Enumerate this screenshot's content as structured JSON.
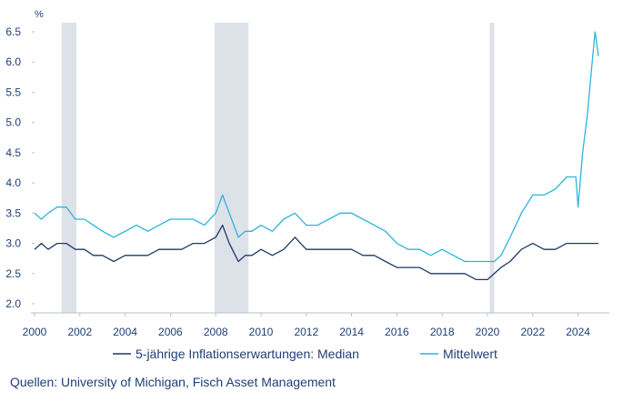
{
  "chart_data": {
    "type": "line",
    "unit_label": "%",
    "x_range": [
      2000.0,
      2024.9
    ],
    "ylim": [
      2.0,
      6.5
    ],
    "y_ticks": [
      2.0,
      2.5,
      3.0,
      3.5,
      4.0,
      4.5,
      5.0,
      5.5,
      6.0,
      6.5
    ],
    "y_tick_labels": [
      "2.0",
      "2.5",
      "3.0",
      "3.5",
      "4.0",
      "4.5",
      "5.0",
      "5.5",
      "6.0",
      "6.5"
    ],
    "x_ticks": [
      2000,
      2002,
      2004,
      2006,
      2008,
      2010,
      2012,
      2014,
      2016,
      2018,
      2020,
      2022,
      2024
    ],
    "x_tick_labels": [
      "2000",
      "2002",
      "2004",
      "2006",
      "2008",
      "2010",
      "2012",
      "2014",
      "2016",
      "2018",
      "2020",
      "2022",
      "2024"
    ],
    "recessions": [
      [
        2001.2,
        2001.85
      ],
      [
        2007.95,
        2009.45
      ],
      [
        2020.1,
        2020.3
      ]
    ],
    "series": [
      {
        "name": "5-jährige Inflationserwartungen: Median",
        "color": "#1b3a6b",
        "points": [
          [
            2000.0,
            2.9
          ],
          [
            2000.3,
            3.0
          ],
          [
            2000.6,
            2.9
          ],
          [
            2001.0,
            3.0
          ],
          [
            2001.4,
            3.0
          ],
          [
            2001.8,
            2.9
          ],
          [
            2002.2,
            2.9
          ],
          [
            2002.6,
            2.8
          ],
          [
            2003.0,
            2.8
          ],
          [
            2003.5,
            2.7
          ],
          [
            2004.0,
            2.8
          ],
          [
            2004.5,
            2.8
          ],
          [
            2005.0,
            2.8
          ],
          [
            2005.5,
            2.9
          ],
          [
            2006.0,
            2.9
          ],
          [
            2006.5,
            2.9
          ],
          [
            2007.0,
            3.0
          ],
          [
            2007.5,
            3.0
          ],
          [
            2008.0,
            3.1
          ],
          [
            2008.3,
            3.3
          ],
          [
            2008.6,
            3.0
          ],
          [
            2009.0,
            2.7
          ],
          [
            2009.3,
            2.8
          ],
          [
            2009.6,
            2.8
          ],
          [
            2010.0,
            2.9
          ],
          [
            2010.5,
            2.8
          ],
          [
            2011.0,
            2.9
          ],
          [
            2011.5,
            3.1
          ],
          [
            2012.0,
            2.9
          ],
          [
            2012.5,
            2.9
          ],
          [
            2013.0,
            2.9
          ],
          [
            2013.5,
            2.9
          ],
          [
            2014.0,
            2.9
          ],
          [
            2014.5,
            2.8
          ],
          [
            2015.0,
            2.8
          ],
          [
            2015.5,
            2.7
          ],
          [
            2016.0,
            2.6
          ],
          [
            2016.5,
            2.6
          ],
          [
            2017.0,
            2.6
          ],
          [
            2017.5,
            2.5
          ],
          [
            2018.0,
            2.5
          ],
          [
            2018.5,
            2.5
          ],
          [
            2019.0,
            2.5
          ],
          [
            2019.5,
            2.4
          ],
          [
            2020.0,
            2.4
          ],
          [
            2020.3,
            2.5
          ],
          [
            2020.6,
            2.6
          ],
          [
            2021.0,
            2.7
          ],
          [
            2021.5,
            2.9
          ],
          [
            2022.0,
            3.0
          ],
          [
            2022.5,
            2.9
          ],
          [
            2023.0,
            2.9
          ],
          [
            2023.5,
            3.0
          ],
          [
            2024.0,
            3.0
          ],
          [
            2024.5,
            3.0
          ],
          [
            2024.9,
            3.0
          ]
        ]
      },
      {
        "name": "Mittelwert",
        "color": "#2bb5de",
        "points": [
          [
            2000.0,
            3.5
          ],
          [
            2000.3,
            3.4
          ],
          [
            2000.6,
            3.5
          ],
          [
            2001.0,
            3.6
          ],
          [
            2001.4,
            3.6
          ],
          [
            2001.8,
            3.4
          ],
          [
            2002.2,
            3.4
          ],
          [
            2002.6,
            3.3
          ],
          [
            2003.0,
            3.2
          ],
          [
            2003.5,
            3.1
          ],
          [
            2004.0,
            3.2
          ],
          [
            2004.5,
            3.3
          ],
          [
            2005.0,
            3.2
          ],
          [
            2005.5,
            3.3
          ],
          [
            2006.0,
            3.4
          ],
          [
            2006.5,
            3.4
          ],
          [
            2007.0,
            3.4
          ],
          [
            2007.5,
            3.3
          ],
          [
            2008.0,
            3.5
          ],
          [
            2008.3,
            3.8
          ],
          [
            2008.6,
            3.5
          ],
          [
            2009.0,
            3.1
          ],
          [
            2009.3,
            3.2
          ],
          [
            2009.6,
            3.2
          ],
          [
            2010.0,
            3.3
          ],
          [
            2010.5,
            3.2
          ],
          [
            2011.0,
            3.4
          ],
          [
            2011.5,
            3.5
          ],
          [
            2012.0,
            3.3
          ],
          [
            2012.5,
            3.3
          ],
          [
            2013.0,
            3.4
          ],
          [
            2013.5,
            3.5
          ],
          [
            2014.0,
            3.5
          ],
          [
            2014.5,
            3.4
          ],
          [
            2015.0,
            3.3
          ],
          [
            2015.5,
            3.2
          ],
          [
            2016.0,
            3.0
          ],
          [
            2016.5,
            2.9
          ],
          [
            2017.0,
            2.9
          ],
          [
            2017.5,
            2.8
          ],
          [
            2018.0,
            2.9
          ],
          [
            2018.5,
            2.8
          ],
          [
            2019.0,
            2.7
          ],
          [
            2019.5,
            2.7
          ],
          [
            2020.0,
            2.7
          ],
          [
            2020.3,
            2.7
          ],
          [
            2020.6,
            2.8
          ],
          [
            2021.0,
            3.1
          ],
          [
            2021.5,
            3.5
          ],
          [
            2022.0,
            3.8
          ],
          [
            2022.5,
            3.8
          ],
          [
            2023.0,
            3.9
          ],
          [
            2023.5,
            4.1
          ],
          [
            2023.9,
            4.1
          ],
          [
            2024.0,
            3.6
          ],
          [
            2024.2,
            4.5
          ],
          [
            2024.4,
            5.1
          ],
          [
            2024.6,
            5.9
          ],
          [
            2024.75,
            6.5
          ],
          [
            2024.9,
            6.1
          ]
        ]
      }
    ],
    "legend_position": "bottom",
    "source_text": "Quellen: University of Michigan, Fisch Asset Management"
  }
}
